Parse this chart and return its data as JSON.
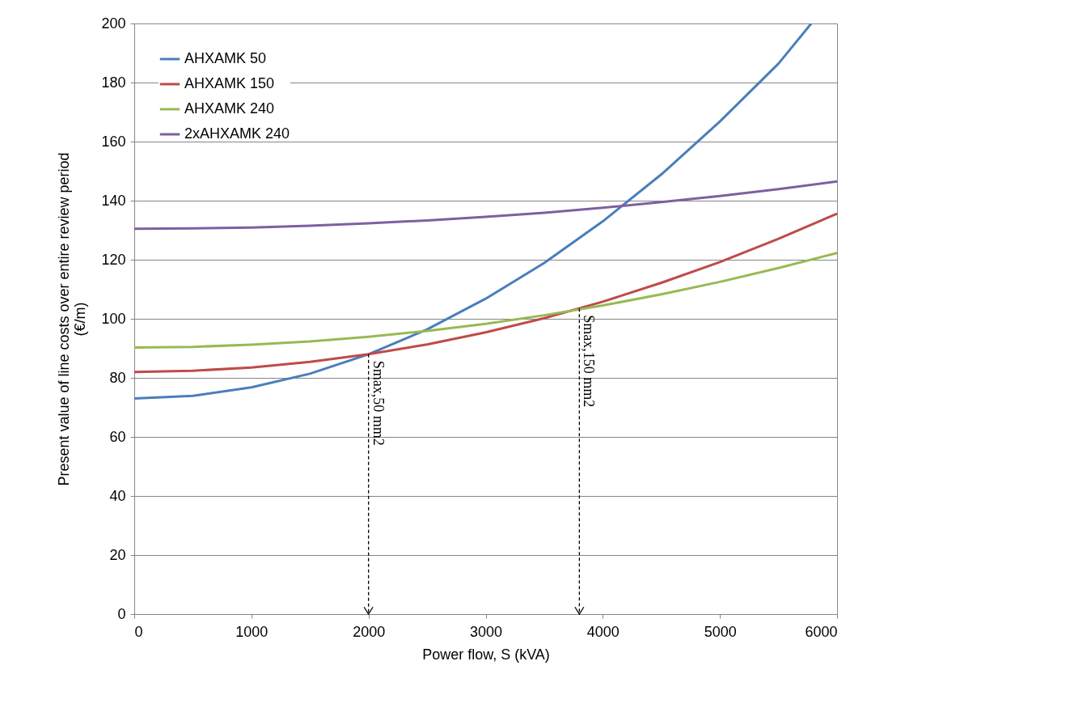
{
  "chart_data": {
    "type": "line",
    "xlabel": "Power flow, S (kVA)",
    "ylabel": "Present value of line costs over entire review period\n(€/m)",
    "xlim": [
      0,
      6000
    ],
    "xticks": [
      0,
      {
        "value": 1000,
        "label": "1000"
      },
      {
        "value": 2000,
        "label": "2000"
      },
      {
        "value": 3000,
        "label": "3000"
      },
      {
        "value": 4000,
        "label": "4000"
      },
      {
        "value": 5000,
        "label": "5000"
      },
      {
        "value": 6000,
        "label": "6000"
      }
    ],
    "ylim": [
      0,
      200
    ],
    "yticks": [
      0,
      20,
      40,
      60,
      80,
      100,
      120,
      140,
      160,
      180,
      200
    ],
    "grid": "y",
    "legend": "top left",
    "marker": "none",
    "line_style": "solid",
    "series": [
      {
        "name": "AHXAMK 50",
        "color": "#4a7ebb",
        "x": [
          0,
          500,
          1000,
          1500,
          2000,
          2500,
          3000,
          3500,
          4000,
          4500,
          5000,
          5500,
          5780
        ],
        "values": [
          73,
          73.9,
          76.8,
          81.4,
          88,
          96.4,
          106.8,
          118.9,
          133,
          148.9,
          166.8,
          186.4,
          200
        ]
      },
      {
        "name": "AHXAMK 150",
        "color": "#be4b48",
        "x": [
          0,
          500,
          1000,
          1500,
          2000,
          2500,
          3000,
          3500,
          4000,
          4500,
          5000,
          5500,
          6000
        ],
        "values": [
          82,
          82.4,
          83.5,
          85.4,
          88,
          91.3,
          95.4,
          100.2,
          105.8,
          112.2,
          119.2,
          127.1,
          135.6
        ]
      },
      {
        "name": "AHXAMK 240",
        "color": "#98b954",
        "x": [
          0,
          500,
          1000,
          1500,
          2000,
          2500,
          3000,
          3500,
          4000,
          4500,
          5000,
          5500,
          6000
        ],
        "values": [
          90.3,
          90.5,
          91.2,
          92.3,
          93.9,
          95.9,
          98.3,
          101.2,
          104.5,
          108.3,
          112.5,
          117.2,
          122.3
        ]
      },
      {
        "name": "2xAHXAMK 240",
        "color": "#7d60a0",
        "x": [
          0,
          500,
          1000,
          1500,
          2000,
          2500,
          3000,
          3500,
          4000,
          4500,
          5000,
          5500,
          6000
        ],
        "values": [
          130.5,
          130.6,
          130.9,
          131.5,
          132.3,
          133.3,
          134.5,
          135.9,
          137.6,
          139.5,
          141.6,
          143.9,
          146.5
        ]
      }
    ],
    "annotations": [
      {
        "text": "Smax,50 mm2",
        "x": 2000,
        "y": 88
      },
      {
        "text": "Smax,150 mm2",
        "x": 3800,
        "y": 103.5
      }
    ]
  }
}
